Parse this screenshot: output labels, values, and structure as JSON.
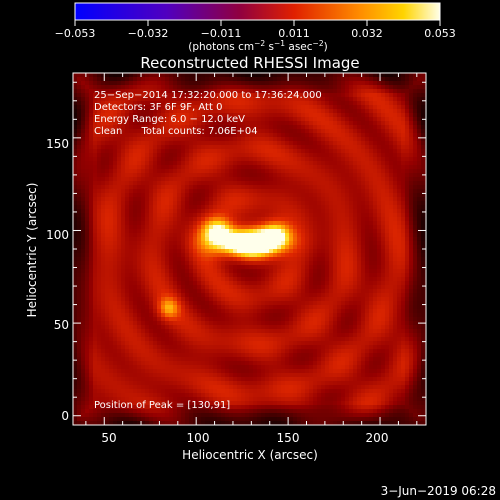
{
  "chart_data": {
    "type": "heatmap",
    "title": "Reconstructed RHESSI Image",
    "xlabel": "Heliocentric X (arcsec)",
    "ylabel": "Heliocentric Y (arcsec)",
    "xlim": [
      33,
      225
    ],
    "ylim": [
      -5,
      185
    ],
    "x_ticks": [
      "50",
      "100",
      "150",
      "200"
    ],
    "y_ticks": [
      "0",
      "50",
      "100",
      "150"
    ],
    "colorbar": {
      "range": [
        -0.053,
        0.053
      ],
      "tick_labels": [
        "−0.053",
        "−0.032",
        "−0.011",
        "0.011",
        "0.032",
        "0.053"
      ],
      "unit_main": "(photons cm",
      "unit_exp1": "−2",
      "unit_mid": " s",
      "unit_exp2": "−1",
      "unit_tail": " asec",
      "unit_exp3": "−2",
      "unit_close": ")"
    },
    "annotations": [
      "25−Sep−2014 17:32:20.000 to 17:36:24.000",
      "Detectors: 3F 6F 9F, Att 0",
      "Energy Range: 6.0 − 12.0 keV",
      "Clean      Total counts: 7.06E+04"
    ],
    "peak_label": "Position of Peak = [130,91]",
    "peak": {
      "x": 130,
      "y": 91
    },
    "sources": [
      {
        "x": 128,
        "y": 93,
        "sx": 13,
        "sy": 5,
        "amp": 0.95
      },
      {
        "x": 112,
        "y": 100,
        "sx": 6,
        "sy": 5,
        "amp": 0.55
      },
      {
        "x": 143,
        "y": 98,
        "sx": 6,
        "sy": 5,
        "amp": 0.55
      },
      {
        "x": 85,
        "y": 58,
        "sx": 4,
        "sy": 4,
        "amp": 0.3
      }
    ],
    "background_level": 0.42
  },
  "footer": {
    "timestamp": "3−Jun−2019 06:28"
  }
}
